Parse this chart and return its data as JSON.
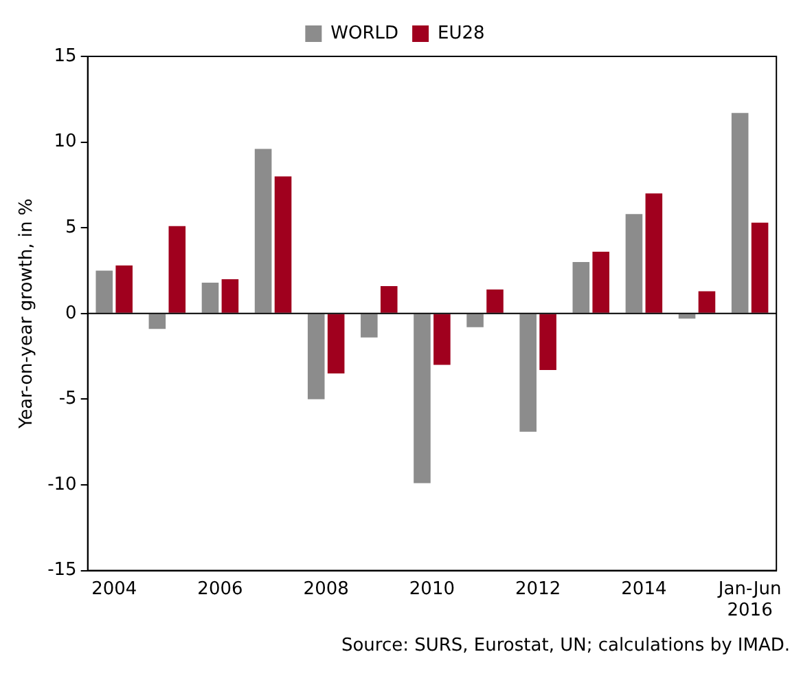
{
  "chart_data": {
    "type": "bar",
    "ylabel": "Year-on-year growth, in %",
    "categories": [
      "2004",
      null,
      "2006",
      null,
      "2008",
      null,
      "2010",
      null,
      "2012",
      null,
      "2014",
      null,
      "Jan-Jun 2016"
    ],
    "series": [
      {
        "name": "WORLD",
        "color": "#8c8c8c",
        "values": [
          2.5,
          -0.9,
          1.8,
          9.6,
          -5.0,
          -1.4,
          -9.9,
          -0.8,
          -6.9,
          3.0,
          5.8,
          -0.3,
          11.7
        ]
      },
      {
        "name": "EU28",
        "color": "#a0001e",
        "values": [
          2.8,
          5.1,
          2.0,
          8.0,
          -3.5,
          1.6,
          -3.0,
          1.4,
          -3.3,
          3.6,
          7.0,
          1.3,
          5.3
        ]
      }
    ],
    "ylim": [
      -15,
      15
    ],
    "yticks": [
      -15,
      -10,
      -5,
      0,
      5,
      10,
      15
    ],
    "grid": false,
    "legend": "top",
    "ref_lines": [
      {
        "axis": "y",
        "value": 0,
        "color": "#000000"
      }
    ],
    "annotations": [
      "Source: SURS, Eurostat, UN; calculations by IMAD."
    ]
  }
}
